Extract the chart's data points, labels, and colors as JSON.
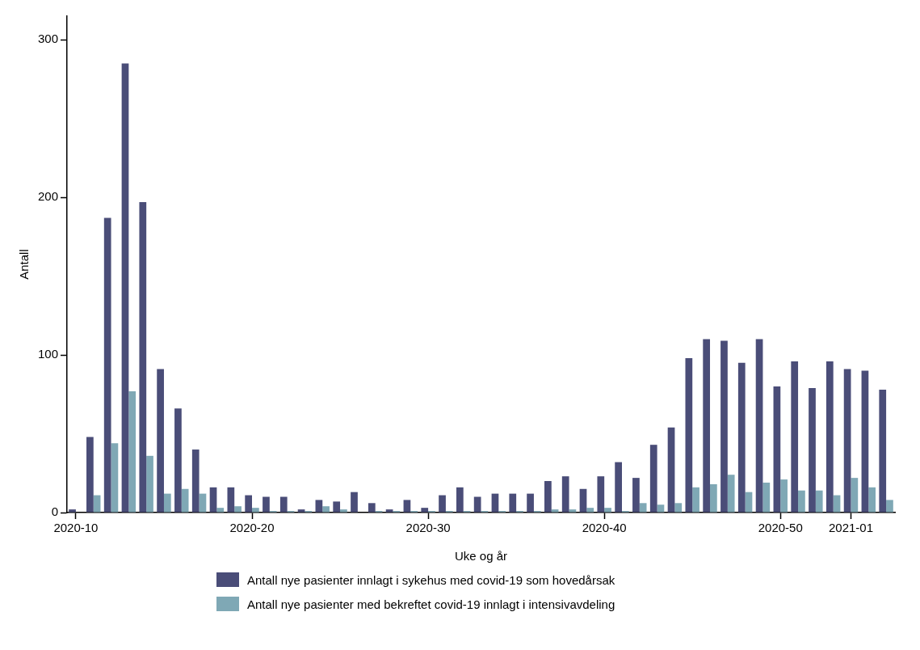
{
  "chart_data": {
    "type": "bar",
    "xlabel": "Uke og år",
    "ylabel": "Antall",
    "categories": [
      "2020-10",
      null,
      null,
      null,
      null,
      null,
      null,
      null,
      null,
      null,
      "2020-20",
      null,
      null,
      null,
      null,
      null,
      null,
      null,
      null,
      null,
      "2020-30",
      null,
      null,
      null,
      null,
      null,
      null,
      null,
      null,
      null,
      "2020-40",
      null,
      null,
      null,
      null,
      null,
      null,
      null,
      null,
      null,
      "2020-50",
      null,
      null,
      null,
      "2021-01",
      null,
      null
    ],
    "series": [
      {
        "name": "Antall nye pasienter innlagt i sykehus med covid-19 som hovedårsak",
        "color": "#4a4d78",
        "values": [
          2,
          48,
          187,
          285,
          197,
          91,
          66,
          40,
          16,
          16,
          11,
          10,
          10,
          2,
          8,
          7,
          13,
          6,
          2,
          8,
          3,
          11,
          16,
          10,
          12,
          12,
          12,
          20,
          23,
          15,
          23,
          32,
          22,
          43,
          54,
          98,
          110,
          109,
          95,
          110,
          80,
          96,
          79,
          96,
          91,
          90,
          78
        ]
      },
      {
        "name": "Antall nye pasienter med bekreftet covid-19 innlagt i intensivavdeling",
        "color": "#7fa8b5",
        "values": [
          0,
          11,
          44,
          77,
          36,
          12,
          15,
          12,
          3,
          4,
          3,
          1,
          1,
          1,
          4,
          2,
          0,
          1,
          1,
          1,
          1,
          1,
          1,
          1,
          1,
          1,
          1,
          2,
          2,
          3,
          3,
          1,
          6,
          5,
          6,
          16,
          18,
          24,
          13,
          19,
          21,
          14,
          14,
          11,
          22,
          16,
          8
        ]
      }
    ],
    "ylim": [
      0,
      315
    ],
    "yticks": [
      0,
      100,
      200,
      300
    ],
    "grid": false,
    "legend": "bottom"
  }
}
